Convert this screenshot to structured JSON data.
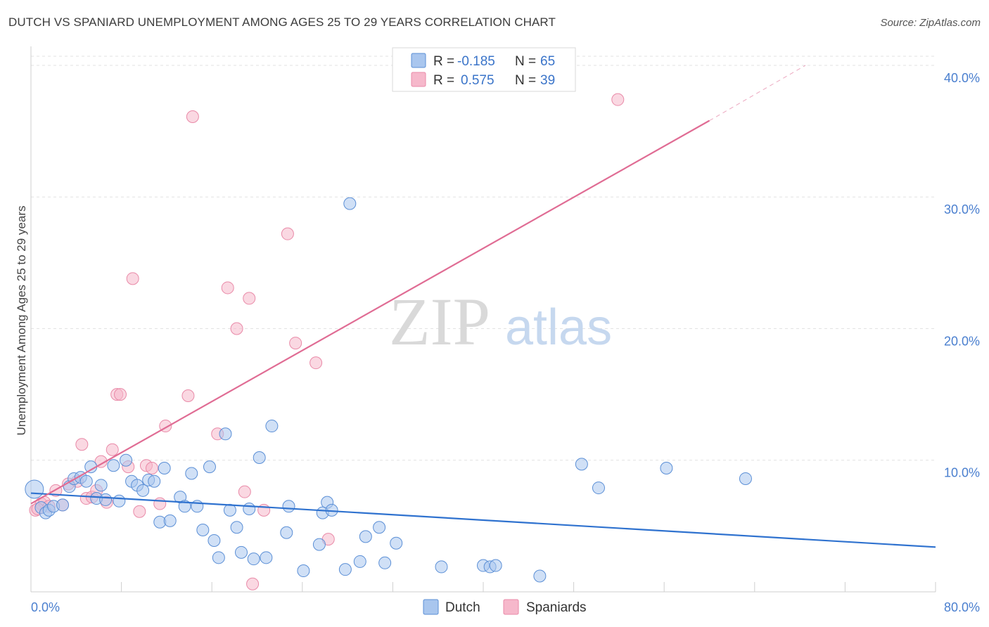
{
  "title": "DUTCH VS SPANIARD UNEMPLOYMENT AMONG AGES 25 TO 29 YEARS CORRELATION CHART",
  "source": "Source: ZipAtlas.com",
  "watermark": {
    "zip": "ZIP",
    "atlas": "atlas"
  },
  "colors": {
    "dutch_fill": "#a9c6ee",
    "dutch_stroke": "#5b8fd6",
    "dutch_line": "#2f72cf",
    "span_fill": "#f6b8cb",
    "span_stroke": "#e98aa8",
    "span_line": "#e06c94",
    "tick": "#4a7fcf",
    "grid": "#e2e2e2"
  },
  "legend": {
    "rows": [
      {
        "r_label": "R = ",
        "r_value": "-0.185",
        "n_label": "N = ",
        "n_value": "65"
      },
      {
        "r_label": "R = ",
        "r_value": "0.575",
        "n_label": "N = ",
        "n_value": "39"
      }
    ]
  },
  "chart_data": {
    "type": "scatter",
    "title": "DUTCH VS SPANIARD UNEMPLOYMENT AMONG AGES 25 TO 29 YEARS CORRELATION CHART",
    "xlabel": "",
    "ylabel": "Unemployment Among Ages 25 to 29 years",
    "xlim": [
      0,
      80
    ],
    "ylim": [
      0,
      40.8
    ],
    "x_tick_labels": [
      "0.0%",
      "80.0%"
    ],
    "y_ticks": [
      10,
      20,
      30,
      40
    ],
    "y_tick_labels": [
      "10.0%",
      "20.0%",
      "30.0%",
      "40.0%"
    ],
    "grid": true,
    "legend_position": "top-center",
    "series": [
      {
        "name": "Dutch",
        "r": -0.185,
        "n": 65,
        "trend": {
          "x": [
            0,
            80
          ],
          "y": [
            7.5,
            3.4
          ]
        },
        "points": [
          [
            0.3,
            7.8
          ],
          [
            0.9,
            6.4
          ],
          [
            1.3,
            6.0
          ],
          [
            1.6,
            6.2
          ],
          [
            2.0,
            6.5
          ],
          [
            2.8,
            6.6
          ],
          [
            3.4,
            8.0
          ],
          [
            3.8,
            8.6
          ],
          [
            4.4,
            8.7
          ],
          [
            4.9,
            8.4
          ],
          [
            5.3,
            9.5
          ],
          [
            5.8,
            7.1
          ],
          [
            6.2,
            8.1
          ],
          [
            6.6,
            7.0
          ],
          [
            7.3,
            9.6
          ],
          [
            7.8,
            6.9
          ],
          [
            8.4,
            10.0
          ],
          [
            8.9,
            8.4
          ],
          [
            9.4,
            8.1
          ],
          [
            9.9,
            7.7
          ],
          [
            10.4,
            8.5
          ],
          [
            10.9,
            8.4
          ],
          [
            11.4,
            5.3
          ],
          [
            11.8,
            9.4
          ],
          [
            12.3,
            5.4
          ],
          [
            13.2,
            7.2
          ],
          [
            13.6,
            6.5
          ],
          [
            14.2,
            9.0
          ],
          [
            14.7,
            6.5
          ],
          [
            15.2,
            4.7
          ],
          [
            15.8,
            9.5
          ],
          [
            16.2,
            3.9
          ],
          [
            16.6,
            2.6
          ],
          [
            17.2,
            12.0
          ],
          [
            17.6,
            6.2
          ],
          [
            18.2,
            4.9
          ],
          [
            18.6,
            3.0
          ],
          [
            19.3,
            6.3
          ],
          [
            19.7,
            2.5
          ],
          [
            20.2,
            10.2
          ],
          [
            20.8,
            2.6
          ],
          [
            21.3,
            12.6
          ],
          [
            22.6,
            4.5
          ],
          [
            22.8,
            6.5
          ],
          [
            24.1,
            1.6
          ],
          [
            25.5,
            3.6
          ],
          [
            25.8,
            6.0
          ],
          [
            26.2,
            6.8
          ],
          [
            26.6,
            6.2
          ],
          [
            27.8,
            1.7
          ],
          [
            28.2,
            29.5
          ],
          [
            29.1,
            2.3
          ],
          [
            29.6,
            4.2
          ],
          [
            30.8,
            4.9
          ],
          [
            31.3,
            2.2
          ],
          [
            32.3,
            3.7
          ],
          [
            36.3,
            1.9
          ],
          [
            40.0,
            2.0
          ],
          [
            40.6,
            1.9
          ],
          [
            41.1,
            2.0
          ],
          [
            45.0,
            1.2
          ],
          [
            48.7,
            9.7
          ],
          [
            50.2,
            7.9
          ],
          [
            56.2,
            9.4
          ],
          [
            63.2,
            8.6
          ]
        ]
      },
      {
        "name": "Spaniards",
        "r": 0.575,
        "n": 39,
        "trend": {
          "x": [
            0,
            60
          ],
          "y": [
            6.7,
            35.8
          ],
          "dashed_to": {
            "x": 68.5,
            "y": 40.0
          }
        },
        "points": [
          [
            0.4,
            6.2
          ],
          [
            0.9,
            6.7
          ],
          [
            1.2,
            6.8
          ],
          [
            1.6,
            6.5
          ],
          [
            2.2,
            7.7
          ],
          [
            2.8,
            6.6
          ],
          [
            3.3,
            8.2
          ],
          [
            4.1,
            8.4
          ],
          [
            4.5,
            11.2
          ],
          [
            4.9,
            7.1
          ],
          [
            5.4,
            7.2
          ],
          [
            5.8,
            7.7
          ],
          [
            6.2,
            9.9
          ],
          [
            6.7,
            6.8
          ],
          [
            7.2,
            10.8
          ],
          [
            7.6,
            15.0
          ],
          [
            7.9,
            15.0
          ],
          [
            8.6,
            9.5
          ],
          [
            9.0,
            23.8
          ],
          [
            9.6,
            6.1
          ],
          [
            10.2,
            9.6
          ],
          [
            10.7,
            9.4
          ],
          [
            11.4,
            6.7
          ],
          [
            11.9,
            12.6
          ],
          [
            13.9,
            14.9
          ],
          [
            14.3,
            36.1
          ],
          [
            16.5,
            12.0
          ],
          [
            17.4,
            23.1
          ],
          [
            18.2,
            20.0
          ],
          [
            18.9,
            7.6
          ],
          [
            19.3,
            22.3
          ],
          [
            19.6,
            0.6
          ],
          [
            20.6,
            6.2
          ],
          [
            22.7,
            27.2
          ],
          [
            23.4,
            18.9
          ],
          [
            25.2,
            17.4
          ],
          [
            26.3,
            4.0
          ],
          [
            51.9,
            37.4
          ],
          [
            0.6,
            6.3
          ]
        ]
      }
    ]
  }
}
